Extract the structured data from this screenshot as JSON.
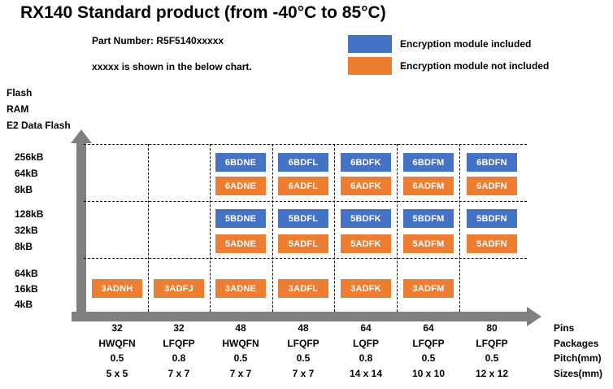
{
  "header": {
    "title": "RX140  Standard product (from -40°C to 85°C)",
    "part_number_note": "Part Number: R5F5140xxxxx",
    "chart_note": "xxxxx is shown in the below chart."
  },
  "legend": {
    "position": "top-right",
    "included": {
      "label": "Encryption module included",
      "color": "#4472C4"
    },
    "not_included": {
      "label": "Encryption module not included",
      "color": "#ED7D31"
    }
  },
  "chart_data": {
    "type": "table",
    "title": "RX140 Standard product (from -40°C to 85°C)",
    "grid": "dashed",
    "memory_captions": [
      "Flash",
      "RAM",
      "E2 Data Flash"
    ],
    "axis_row_captions": [
      "Pins",
      "Packages",
      "Pitch(mm)",
      "Sizes(mm)"
    ],
    "columns": [
      {
        "pins": "32",
        "package": "HWQFN",
        "pitch": "0.5",
        "size": "5 x 5"
      },
      {
        "pins": "32",
        "package": "LFQFP",
        "pitch": "0.8",
        "size": "7 x 7"
      },
      {
        "pins": "48",
        "package": "HWQFN",
        "pitch": "0.5",
        "size": "7 x 7"
      },
      {
        "pins": "48",
        "package": "LFQFP",
        "pitch": "0.5",
        "size": "7 x 7"
      },
      {
        "pins": "64",
        "package": "LQFP",
        "pitch": "0.8",
        "size": "14 x 14"
      },
      {
        "pins": "64",
        "package": "LFQFP",
        "pitch": "0.5",
        "size": "10 x 10"
      },
      {
        "pins": "80",
        "package": "LFQFP",
        "pitch": "0.5",
        "size": "12 x 12"
      }
    ],
    "row_groups": [
      {
        "flash": "256kB",
        "ram": "64kB",
        "e2_data_flash": "8kB",
        "rows": [
          {
            "encryption": true,
            "parts": [
              null,
              null,
              "6BDNE",
              "6BDFL",
              "6BDFK",
              "6BDFM",
              "6BDFN"
            ]
          },
          {
            "encryption": false,
            "parts": [
              null,
              null,
              "6ADNE",
              "6ADFL",
              "6ADFK",
              "6ADFM",
              "6ADFN"
            ]
          }
        ]
      },
      {
        "flash": "128kB",
        "ram": "32kB",
        "e2_data_flash": "8kB",
        "rows": [
          {
            "encryption": true,
            "parts": [
              null,
              null,
              "5BDNE",
              "5BDFL",
              "5BDFK",
              "5BDFM",
              "5BDFN"
            ]
          },
          {
            "encryption": false,
            "parts": [
              null,
              null,
              "5ADNE",
              "5ADFL",
              "5ADFK",
              "5ADFM",
              "5ADFN"
            ]
          }
        ]
      },
      {
        "flash": "64kB",
        "ram": "16kB",
        "e2_data_flash": "4kB",
        "rows": [
          {
            "encryption": false,
            "parts": [
              "3ADNH",
              "3ADFJ",
              "3ADNE",
              "3ADFL",
              "3ADFK",
              "3ADFM",
              null
            ]
          }
        ]
      }
    ],
    "colors": {
      "encryption_included": "#4472C4",
      "encryption_not_included": "#ED7D31",
      "axis": "#7F7F7F"
    }
  }
}
